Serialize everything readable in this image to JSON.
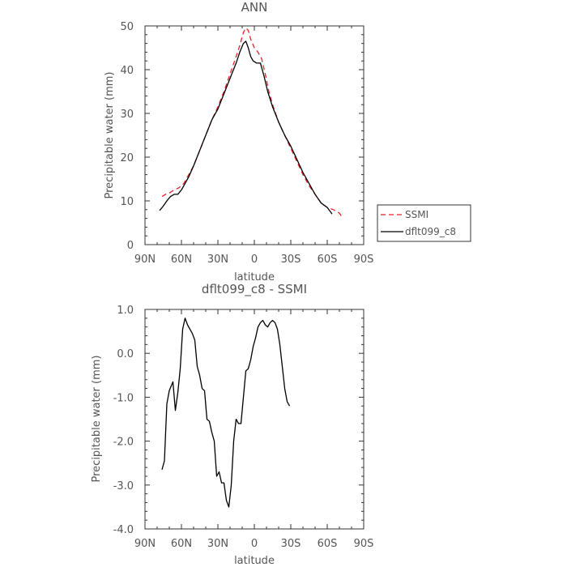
{
  "chart_data": [
    {
      "type": "line",
      "title": "ANN",
      "xlabel": "latitude",
      "ylabel": "Precipitable water (mm)",
      "xlim": [
        90,
        -90
      ],
      "ylim": [
        0,
        50
      ],
      "xticks": [
        {
          "value": 90,
          "label": "90N"
        },
        {
          "value": 60,
          "label": "60N"
        },
        {
          "value": 30,
          "label": "30N"
        },
        {
          "value": 0,
          "label": "0"
        },
        {
          "value": -30,
          "label": "30S"
        },
        {
          "value": -60,
          "label": "60S"
        },
        {
          "value": -90,
          "label": "90S"
        }
      ],
      "yticks": [
        {
          "value": 0,
          "label": "0"
        },
        {
          "value": 10,
          "label": "10"
        },
        {
          "value": 20,
          "label": "20"
        },
        {
          "value": 30,
          "label": "30"
        },
        {
          "value": 40,
          "label": "40"
        },
        {
          "value": 50,
          "label": "50"
        }
      ],
      "legend_position": "right",
      "series": [
        {
          "name": "SSMI",
          "color": "#e8212a",
          "dash": "dashed",
          "points": [
            [
              76,
              11.0
            ],
            [
              73,
              11.5
            ],
            [
              70,
              11.8
            ],
            [
              66,
              12.5
            ],
            [
              62,
              13.0
            ],
            [
              58,
              14.0
            ],
            [
              55,
              15.5
            ],
            [
              50,
              18.0
            ],
            [
              45,
              21.5
            ],
            [
              40,
              25.0
            ],
            [
              35,
              28.5
            ],
            [
              30,
              31.5
            ],
            [
              25,
              35.0
            ],
            [
              20,
              39.0
            ],
            [
              15,
              43.0
            ],
            [
              12,
              45.5
            ],
            [
              9,
              48.5
            ],
            [
              7,
              49.5
            ],
            [
              5,
              49.0
            ],
            [
              3,
              47.0
            ],
            [
              0,
              45.0
            ],
            [
              -3,
              44.0
            ],
            [
              -6,
              42.5
            ],
            [
              -9,
              39.0
            ],
            [
              -12,
              35.0
            ],
            [
              -15,
              32.0
            ],
            [
              -20,
              28.0
            ],
            [
              -25,
              25.0
            ],
            [
              -30,
              22.0
            ],
            [
              -35,
              19.0
            ],
            [
              -40,
              16.0
            ],
            [
              -45,
              13.5
            ],
            [
              -50,
              11.5
            ],
            [
              -55,
              9.5
            ],
            [
              -60,
              8.5
            ],
            [
              -65,
              8.0
            ],
            [
              -70,
              7.2
            ],
            [
              -73,
              6.0
            ]
          ]
        },
        {
          "name": "dflt099_c8",
          "color": "#000000",
          "dash": "solid",
          "points": [
            [
              78,
              7.8
            ],
            [
              75,
              8.8
            ],
            [
              72,
              10.0
            ],
            [
              69,
              11.0
            ],
            [
              66,
              11.5
            ],
            [
              63,
              11.5
            ],
            [
              60,
              12.5
            ],
            [
              57,
              14.0
            ],
            [
              54,
              15.5
            ],
            [
              50,
              18.0
            ],
            [
              45,
              21.5
            ],
            [
              40,
              25.0
            ],
            [
              35,
              28.5
            ],
            [
              30,
              31.0
            ],
            [
              25,
              34.5
            ],
            [
              20,
              38.0
            ],
            [
              15,
              41.5
            ],
            [
              12,
              44.0
            ],
            [
              9,
              46.0
            ],
            [
              7,
              46.5
            ],
            [
              5,
              45.0
            ],
            [
              3,
              43.0
            ],
            [
              1,
              42.0
            ],
            [
              -2,
              41.5
            ],
            [
              -5,
              41.5
            ],
            [
              -8,
              38.5
            ],
            [
              -11,
              35.0
            ],
            [
              -15,
              31.5
            ],
            [
              -20,
              28.0
            ],
            [
              -25,
              25.0
            ],
            [
              -30,
              22.5
            ],
            [
              -35,
              19.5
            ],
            [
              -40,
              16.5
            ],
            [
              -45,
              14.0
            ],
            [
              -50,
              11.5
            ],
            [
              -55,
              9.5
            ],
            [
              -60,
              8.5
            ],
            [
              -64,
              7.0
            ]
          ]
        }
      ]
    },
    {
      "type": "line",
      "title": "dflt099_c8 - SSMI",
      "xlabel": "latitude",
      "ylabel": "Precipitable water (mm)",
      "xlim": [
        90,
        -90
      ],
      "ylim": [
        -4,
        1
      ],
      "xticks": [
        {
          "value": 90,
          "label": "90N"
        },
        {
          "value": 60,
          "label": "60N"
        },
        {
          "value": 30,
          "label": "30N"
        },
        {
          "value": 0,
          "label": "0"
        },
        {
          "value": -30,
          "label": "30S"
        },
        {
          "value": -60,
          "label": "60S"
        },
        {
          "value": -90,
          "label": "90S"
        }
      ],
      "yticks": [
        {
          "value": -4,
          "label": "-4.0"
        },
        {
          "value": -3,
          "label": "-3.0"
        },
        {
          "value": -2,
          "label": "-2.0"
        },
        {
          "value": -1,
          "label": "-1.0"
        },
        {
          "value": 0,
          "label": "0.0"
        },
        {
          "value": 1,
          "label": "1.0"
        }
      ],
      "series": [
        {
          "name": "",
          "color": "#000000",
          "dash": "solid",
          "points": [
            [
              76,
              -2.65
            ],
            [
              74,
              -2.45
            ],
            [
              72,
              -1.15
            ],
            [
              70,
              -0.85
            ],
            [
              67,
              -0.65
            ],
            [
              65,
              -1.3
            ],
            [
              63,
              -0.9
            ],
            [
              61,
              -0.35
            ],
            [
              59,
              0.55
            ],
            [
              57,
              0.8
            ],
            [
              55,
              0.65
            ],
            [
              53,
              0.55
            ],
            [
              51,
              0.45
            ],
            [
              49,
              0.3
            ],
            [
              47,
              -0.3
            ],
            [
              45,
              -0.5
            ],
            [
              43,
              -0.8
            ],
            [
              41,
              -0.85
            ],
            [
              39,
              -1.5
            ],
            [
              37,
              -1.55
            ],
            [
              35,
              -1.8
            ],
            [
              33,
              -2.0
            ],
            [
              31,
              -2.8
            ],
            [
              29,
              -2.7
            ],
            [
              27,
              -2.95
            ],
            [
              25,
              -2.95
            ],
            [
              23,
              -3.35
            ],
            [
              21,
              -3.5
            ],
            [
              19,
              -3.0
            ],
            [
              17,
              -2.0
            ],
            [
              15,
              -1.5
            ],
            [
              13,
              -1.6
            ],
            [
              11,
              -1.6
            ],
            [
              9,
              -1.0
            ],
            [
              7,
              -0.4
            ],
            [
              5,
              -0.35
            ],
            [
              3,
              -0.15
            ],
            [
              1,
              0.15
            ],
            [
              -1,
              0.35
            ],
            [
              -3,
              0.6
            ],
            [
              -5,
              0.7
            ],
            [
              -7,
              0.75
            ],
            [
              -9,
              0.65
            ],
            [
              -11,
              0.6
            ],
            [
              -13,
              0.7
            ],
            [
              -15,
              0.75
            ],
            [
              -17,
              0.7
            ],
            [
              -19,
              0.55
            ],
            [
              -21,
              0.2
            ],
            [
              -23,
              -0.3
            ],
            [
              -25,
              -0.8
            ],
            [
              -27,
              -1.1
            ],
            [
              -29,
              -1.2
            ]
          ]
        }
      ]
    }
  ]
}
